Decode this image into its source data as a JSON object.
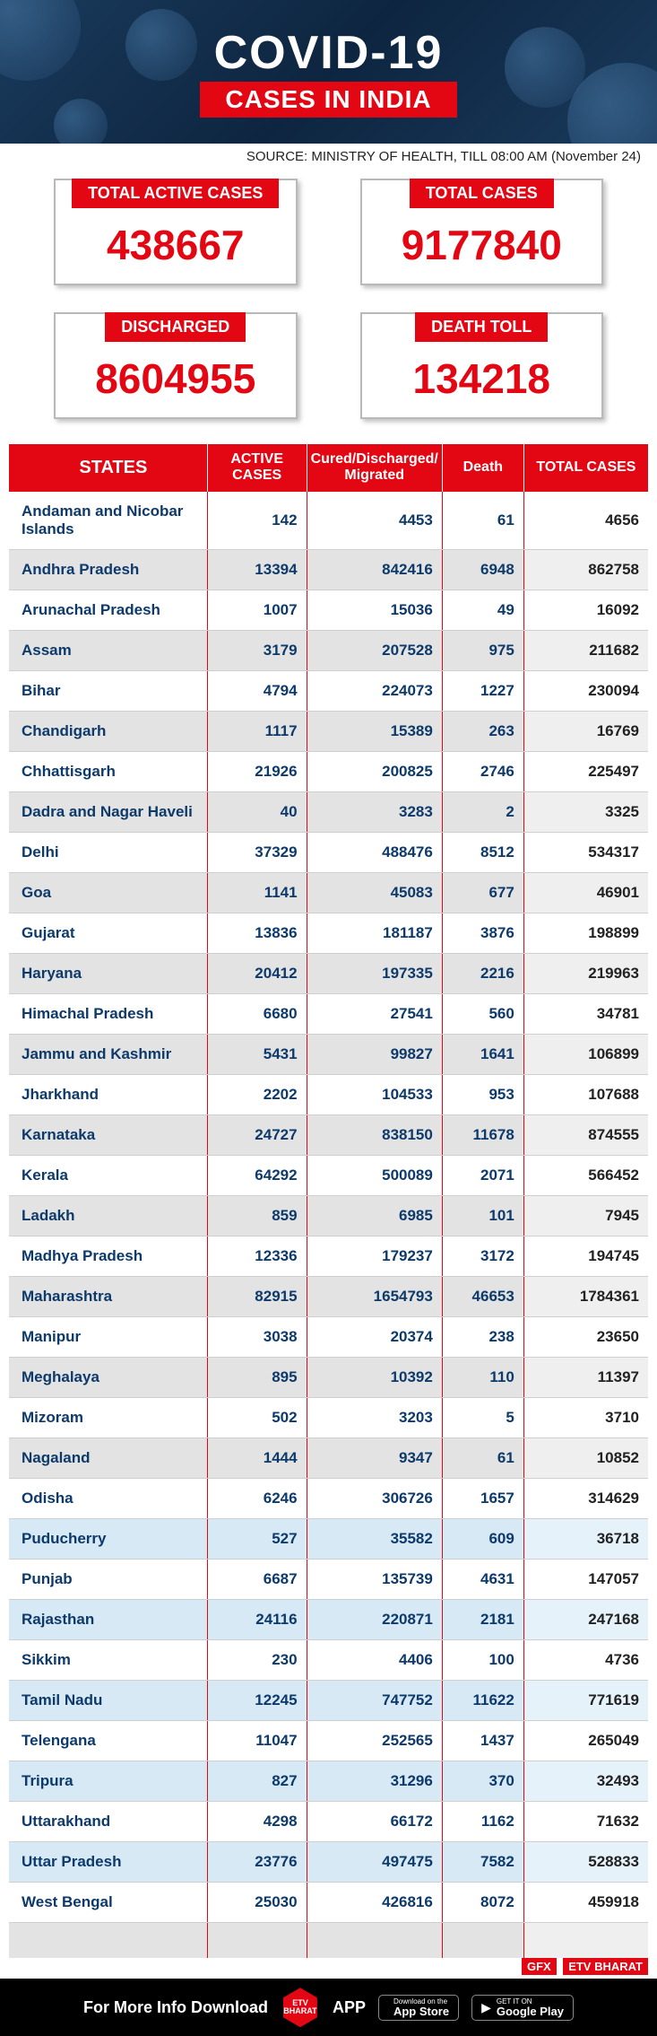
{
  "header": {
    "title": "COVID-19",
    "subtitle": "CASES IN INDIA",
    "source": "SOURCE: MINISTRY OF HEALTH, TILL 08:00 AM (November 24)"
  },
  "summary": [
    {
      "label": "TOTAL ACTIVE CASES",
      "value": "438667"
    },
    {
      "label": "TOTAL CASES",
      "value": "9177840"
    },
    {
      "label": "DISCHARGED",
      "value": "8604955"
    },
    {
      "label": "DEATH TOLL",
      "value": "134218"
    }
  ],
  "table": {
    "columns": [
      "STATES",
      "ACTIVE CASES",
      "Cured/Discharged/\nMigrated",
      "Death",
      "TOTAL CASES"
    ],
    "rows": [
      {
        "state": "Andaman and Nicobar Islands",
        "active": "142",
        "cured": "4453",
        "death": "61",
        "total": "4656",
        "tint": false
      },
      {
        "state": "Andhra Pradesh",
        "active": "13394",
        "cured": "842416",
        "death": "6948",
        "total": "862758",
        "tint": false
      },
      {
        "state": "Arunachal Pradesh",
        "active": "1007",
        "cured": "15036",
        "death": "49",
        "total": "16092",
        "tint": false
      },
      {
        "state": "Assam",
        "active": "3179",
        "cured": "207528",
        "death": "975",
        "total": "211682",
        "tint": false
      },
      {
        "state": "Bihar",
        "active": "4794",
        "cured": "224073",
        "death": "1227",
        "total": "230094",
        "tint": false
      },
      {
        "state": "Chandigarh",
        "active": "1117",
        "cured": "15389",
        "death": "263",
        "total": "16769",
        "tint": false
      },
      {
        "state": "Chhattisgarh",
        "active": "21926",
        "cured": "200825",
        "death": "2746",
        "total": "225497",
        "tint": false
      },
      {
        "state": "Dadra and Nagar Haveli",
        "active": "40",
        "cured": "3283",
        "death": "2",
        "total": "3325",
        "tint": false
      },
      {
        "state": "Delhi",
        "active": "37329",
        "cured": "488476",
        "death": "8512",
        "total": "534317",
        "tint": false
      },
      {
        "state": "Goa",
        "active": "1141",
        "cured": "45083",
        "death": "677",
        "total": "46901",
        "tint": false
      },
      {
        "state": "Gujarat",
        "active": "13836",
        "cured": "181187",
        "death": "3876",
        "total": "198899",
        "tint": false
      },
      {
        "state": "Haryana",
        "active": "20412",
        "cured": "197335",
        "death": "2216",
        "total": "219963",
        "tint": false
      },
      {
        "state": "Himachal Pradesh",
        "active": "6680",
        "cured": "27541",
        "death": "560",
        "total": "34781",
        "tint": false
      },
      {
        "state": "Jammu and Kashmir",
        "active": "5431",
        "cured": "99827",
        "death": "1641",
        "total": "106899",
        "tint": false
      },
      {
        "state": "Jharkhand",
        "active": "2202",
        "cured": "104533",
        "death": "953",
        "total": "107688",
        "tint": false
      },
      {
        "state": "Karnataka",
        "active": "24727",
        "cured": "838150",
        "death": "11678",
        "total": "874555",
        "tint": false
      },
      {
        "state": "Kerala",
        "active": "64292",
        "cured": "500089",
        "death": "2071",
        "total": "566452",
        "tint": false
      },
      {
        "state": "Ladakh",
        "active": "859",
        "cured": "6985",
        "death": "101",
        "total": "7945",
        "tint": false
      },
      {
        "state": "Madhya Pradesh",
        "active": "12336",
        "cured": "179237",
        "death": "3172",
        "total": "194745",
        "tint": false
      },
      {
        "state": "Maharashtra",
        "active": "82915",
        "cured": "1654793",
        "death": "46653",
        "total": "1784361",
        "tint": false
      },
      {
        "state": "Manipur",
        "active": "3038",
        "cured": "20374",
        "death": "238",
        "total": "23650",
        "tint": false
      },
      {
        "state": "Meghalaya",
        "active": "895",
        "cured": "10392",
        "death": "110",
        "total": "11397",
        "tint": false
      },
      {
        "state": "Mizoram",
        "active": "502",
        "cured": "3203",
        "death": "5",
        "total": "3710",
        "tint": false
      },
      {
        "state": "Nagaland",
        "active": "1444",
        "cured": "9347",
        "death": "61",
        "total": "10852",
        "tint": false
      },
      {
        "state": "Odisha",
        "active": "6246",
        "cured": "306726",
        "death": "1657",
        "total": "314629",
        "tint": false
      },
      {
        "state": "Puducherry",
        "active": "527",
        "cured": "35582",
        "death": "609",
        "total": "36718",
        "tint": true
      },
      {
        "state": "Punjab",
        "active": "6687",
        "cured": "135739",
        "death": "4631",
        "total": "147057",
        "tint": false
      },
      {
        "state": "Rajasthan",
        "active": "24116",
        "cured": "220871",
        "death": "2181",
        "total": "247168",
        "tint": true
      },
      {
        "state": "Sikkim",
        "active": "230",
        "cured": "4406",
        "death": "100",
        "total": "4736",
        "tint": false
      },
      {
        "state": "Tamil Nadu",
        "active": "12245",
        "cured": "747752",
        "death": "11622",
        "total": "771619",
        "tint": true
      },
      {
        "state": "Telengana",
        "active": "11047",
        "cured": "252565",
        "death": "1437",
        "total": "265049",
        "tint": false
      },
      {
        "state": "Tripura",
        "active": "827",
        "cured": "31296",
        "death": "370",
        "total": "32493",
        "tint": true
      },
      {
        "state": "Uttarakhand",
        "active": "4298",
        "cured": "66172",
        "death": "1162",
        "total": "71632",
        "tint": false
      },
      {
        "state": "Uttar Pradesh",
        "active": "23776",
        "cured": "497475",
        "death": "7582",
        "total": "528833",
        "tint": true
      },
      {
        "state": "West Bengal",
        "active": "25030",
        "cured": "426816",
        "death": "8072",
        "total": "459918",
        "tint": false
      }
    ]
  },
  "footer": {
    "gfx": "GFX",
    "brand": "ETV BHARAT",
    "info": "For More Info Download",
    "logo": "ETV BHARAT",
    "app": "APP",
    "store1_tiny": "Download on the",
    "store1_big": "App Store",
    "store2_tiny": "GET IT ON",
    "store2_big": "Google Play"
  },
  "styling": {
    "accent_red": "#e30613",
    "header_bg": "#0d2540",
    "data_blue": "#0d3a6b",
    "alt_row": "#e3e3e3",
    "tint_row": "#d7e9f5",
    "title_fontsize": 52,
    "value_fontsize": 46
  }
}
